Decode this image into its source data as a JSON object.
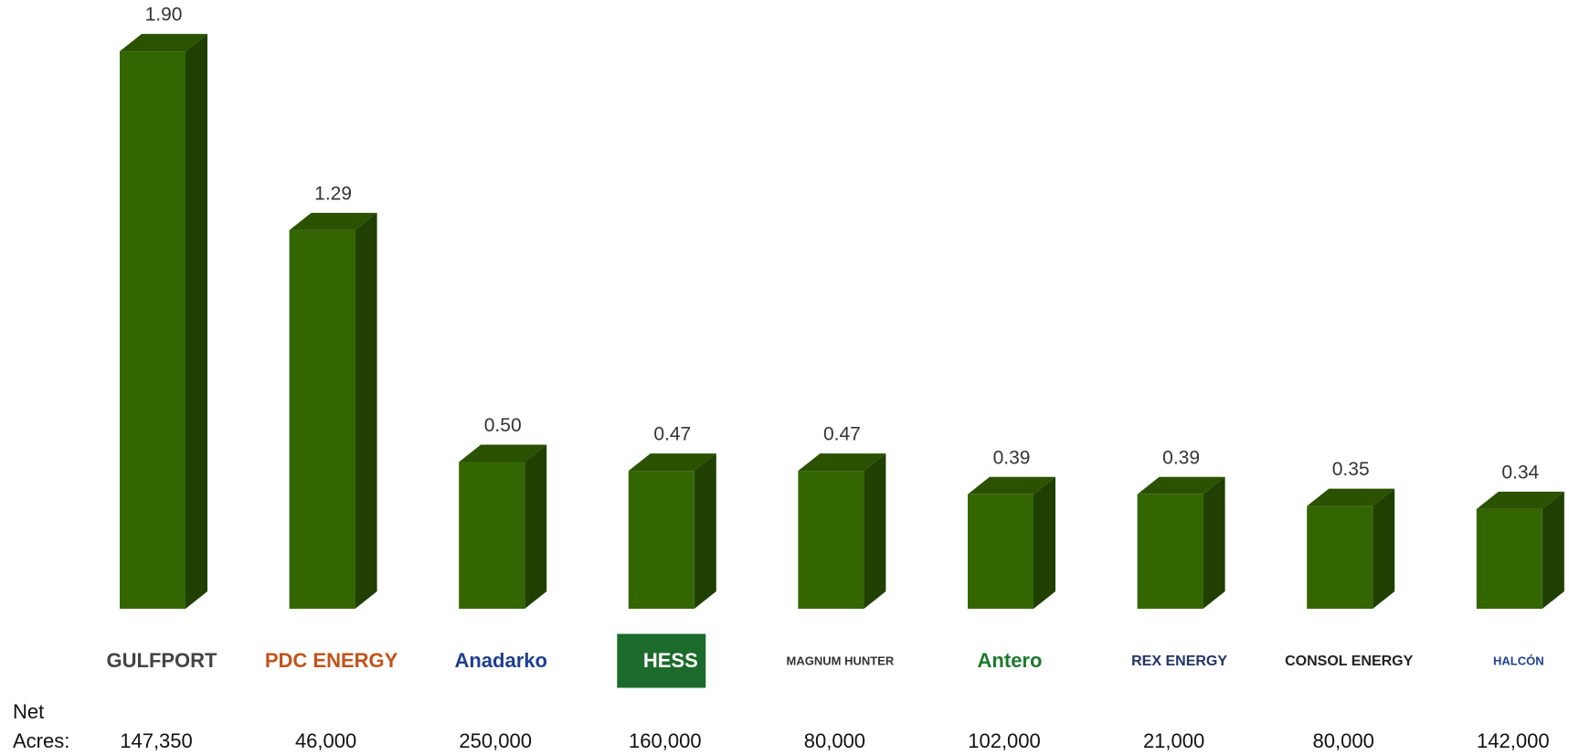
{
  "chart_data": {
    "type": "bar3d",
    "categories": [
      "GULFPORT",
      "PDC ENERGY",
      "Anadarko",
      "HESS",
      "MAGNUM HUNTER",
      "Antero",
      "REX ENERGY",
      "CONSOL ENERGY",
      "HALCÓN"
    ],
    "values": [
      1.9,
      1.29,
      0.5,
      0.47,
      0.47,
      0.39,
      0.39,
      0.35,
      0.34
    ],
    "value_labels": [
      "1.90",
      "1.29",
      "0.50",
      "0.47",
      "0.47",
      "0.39",
      "0.39",
      "0.35",
      "0.34"
    ],
    "color": "#336600",
    "acres_label": [
      "Net",
      "Acres:"
    ],
    "acres": [
      147350,
      46000,
      250000,
      160000,
      80000,
      102000,
      21000,
      80000,
      142000
    ],
    "acres_labels": [
      "147,350",
      "46,000",
      "250,000",
      "160,000",
      "80,000",
      "102,000",
      "21,000",
      "80,000",
      "142,000"
    ]
  }
}
